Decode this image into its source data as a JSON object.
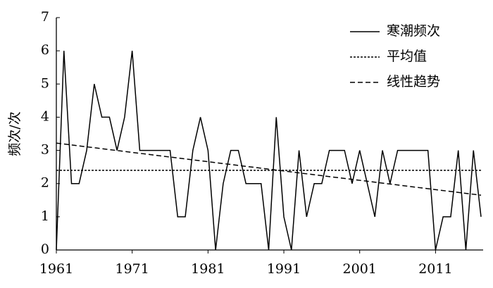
{
  "chart_data": {
    "type": "line",
    "y_label": "频次/次",
    "xlim": [
      1961,
      2017
    ],
    "xticks": [
      1961,
      1971,
      1981,
      1991,
      2001,
      2011
    ],
    "ylim": [
      0,
      7
    ],
    "yticks": [
      0,
      1,
      2,
      3,
      4,
      5,
      6,
      7
    ],
    "legend": "top-right",
    "series": [
      {
        "name": "寒潮频次",
        "color": "#000000",
        "dash": "solid",
        "x": [
          1961,
          1962,
          1963,
          1964,
          1965,
          1966,
          1967,
          1968,
          1969,
          1970,
          1971,
          1972,
          1973,
          1974,
          1975,
          1976,
          1977,
          1978,
          1979,
          1980,
          1981,
          1982,
          1983,
          1984,
          1985,
          1986,
          1987,
          1988,
          1989,
          1990,
          1991,
          1992,
          1993,
          1994,
          1995,
          1996,
          1997,
          1998,
          1999,
          2000,
          2001,
          2002,
          2003,
          2004,
          2005,
          2006,
          2007,
          2008,
          2009,
          2010,
          2011,
          2012,
          2013,
          2014,
          2015,
          2016,
          2017
        ],
        "values": [
          0,
          6,
          2,
          2,
          3,
          5,
          4,
          4,
          3,
          4,
          6,
          3,
          3,
          3,
          3,
          3,
          1,
          1,
          3,
          4,
          3,
          0,
          2,
          3,
          3,
          2,
          2,
          2,
          0,
          4,
          1,
          0,
          3,
          1,
          2,
          2,
          3,
          3,
          3,
          2,
          3,
          2,
          1,
          3,
          2,
          3,
          3,
          3,
          3,
          3,
          0,
          1,
          1,
          3,
          0,
          3,
          1
        ]
      },
      {
        "name": "平均值",
        "color": "#000000",
        "dash": "dotted",
        "x": [
          1961,
          2017
        ],
        "values": [
          2.4,
          2.4
        ]
      },
      {
        "name": "线性趋势",
        "color": "#000000",
        "dash": "dashed",
        "x": [
          1961,
          2017
        ],
        "values": [
          3.22,
          1.65
        ]
      }
    ]
  }
}
